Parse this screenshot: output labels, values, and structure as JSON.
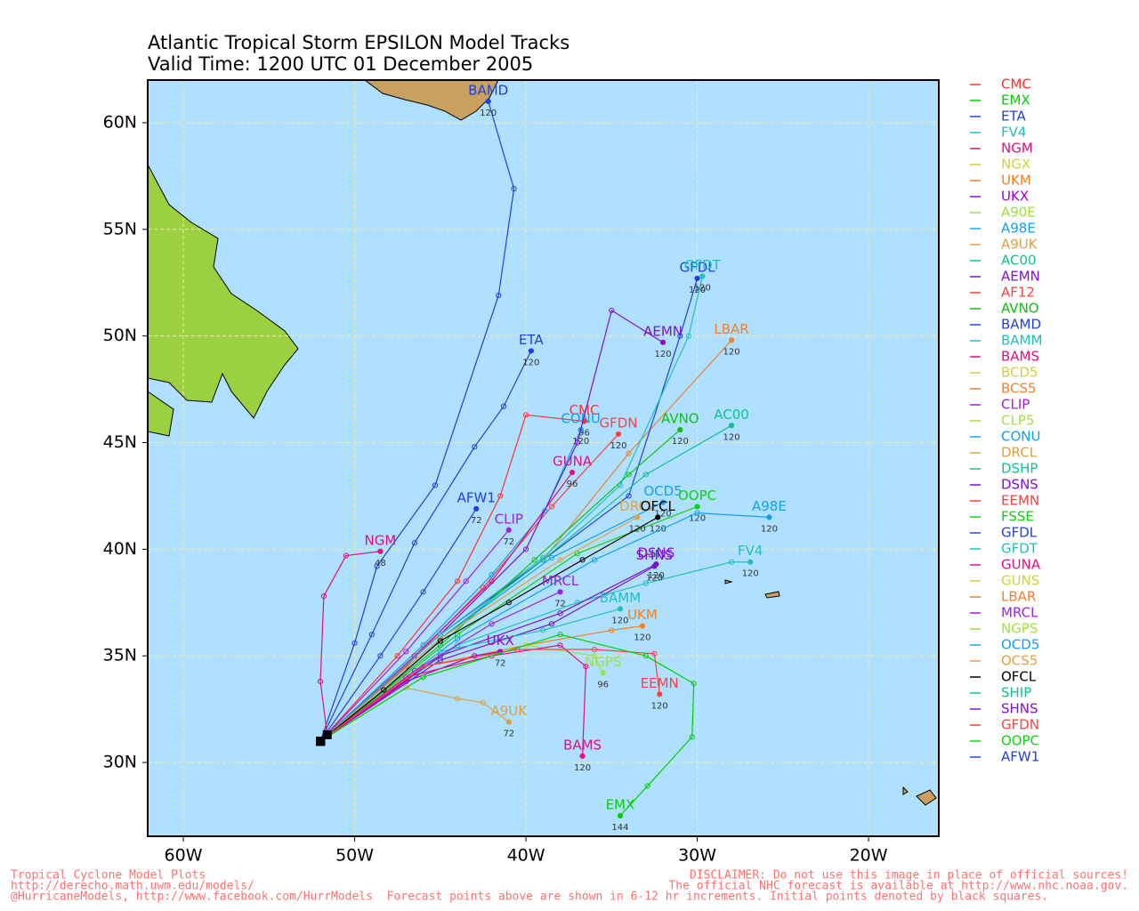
{
  "chart_data": {
    "type": "track-map",
    "title": "Atlantic Tropical Storm EPSILON Model Tracks",
    "subtitle": "Valid Time: 1200 UTC 01 December 2005",
    "xlim": [
      -62.08,
      -15.9
    ],
    "ylim": [
      26.54,
      62
    ],
    "xticks": [
      {
        "value": -60,
        "label": "60W"
      },
      {
        "value": -50,
        "label": "50W"
      },
      {
        "value": -40,
        "label": "40W"
      },
      {
        "value": -30,
        "label": "30W"
      },
      {
        "value": -20,
        "label": "20W"
      }
    ],
    "yticks": [
      {
        "value": 30,
        "label": "30N"
      },
      {
        "value": 35,
        "label": "35N"
      },
      {
        "value": 40,
        "label": "40N"
      },
      {
        "value": 45,
        "label": "45N"
      },
      {
        "value": 50,
        "label": "50N"
      },
      {
        "value": 55,
        "label": "55N"
      },
      {
        "value": 60,
        "label": "60N"
      }
    ],
    "grid": true,
    "ocean_color": "#b0e0ff",
    "legend": [
      {
        "name": "CMC",
        "color": "#ff3030"
      },
      {
        "name": "EMX",
        "color": "#00d000"
      },
      {
        "name": "ETA",
        "color": "#2040e0"
      },
      {
        "name": "FV4",
        "color": "#20c0c0"
      },
      {
        "name": "NGM",
        "color": "#e0107a"
      },
      {
        "name": "NGX",
        "color": "#d0d040"
      },
      {
        "name": "UKM",
        "color": "#f08020"
      },
      {
        "name": "UKX",
        "color": "#a000d0"
      },
      {
        "name": "A90E",
        "color": "#a0e040"
      },
      {
        "name": "A98E",
        "color": "#10a0f0"
      },
      {
        "name": "A9UK",
        "color": "#e0a040"
      },
      {
        "name": "AC00",
        "color": "#10c090"
      },
      {
        "name": "AEMN",
        "color": "#8010d0"
      },
      {
        "name": "AF12",
        "color": "#ff4040"
      },
      {
        "name": "AVNO",
        "color": "#10c010"
      },
      {
        "name": "BAMD",
        "color": "#2040e0"
      },
      {
        "name": "BAMM",
        "color": "#20c0c0"
      },
      {
        "name": "BAMS",
        "color": "#e01080"
      },
      {
        "name": "BCD5",
        "color": "#d0d040"
      },
      {
        "name": "BCS5",
        "color": "#f08030"
      },
      {
        "name": "CLIP",
        "color": "#a020e0"
      },
      {
        "name": "CLP5",
        "color": "#a0e040"
      },
      {
        "name": "CONU",
        "color": "#10a0f0"
      },
      {
        "name": "DRCL",
        "color": "#e0a040"
      },
      {
        "name": "DSHP",
        "color": "#10c090"
      },
      {
        "name": "DSNS",
        "color": "#8010d0"
      },
      {
        "name": "EEMN",
        "color": "#ff4040"
      },
      {
        "name": "FSSE",
        "color": "#10d010"
      },
      {
        "name": "GFDL",
        "color": "#2040e0"
      },
      {
        "name": "GFDT",
        "color": "#20c0c0"
      },
      {
        "name": "GUNA",
        "color": "#e01080"
      },
      {
        "name": "GUNS",
        "color": "#d0d040"
      },
      {
        "name": "LBAR",
        "color": "#f08030"
      },
      {
        "name": "MRCL",
        "color": "#a020e0"
      },
      {
        "name": "NGPS",
        "color": "#a0e040"
      },
      {
        "name": "OCD5",
        "color": "#10a0f0"
      },
      {
        "name": "OCS5",
        "color": "#e0a040"
      },
      {
        "name": "OFCL",
        "color": "#000000"
      },
      {
        "name": "SHIP",
        "color": "#10c090"
      },
      {
        "name": "SHNS",
        "color": "#8010d0"
      },
      {
        "name": "GFDN",
        "color": "#ff4040"
      },
      {
        "name": "OOPC",
        "color": "#10d010"
      },
      {
        "name": "AFW1",
        "color": "#2040e0"
      }
    ],
    "tracks": [
      {
        "name": "BAMD",
        "color": "#2040e0",
        "lon": [
          -52,
          -50,
          -48.7,
          -45.3,
          -41.6,
          -40.7,
          -42.2
        ],
        "lat": [
          31,
          35.6,
          39.2,
          43,
          51.9,
          56.9,
          61
        ],
        "end_hour": 120
      },
      {
        "name": "ETA",
        "color": "#2040e0",
        "lon": [
          -52,
          -49,
          -46.5,
          -43,
          -41.3,
          -39.7
        ],
        "lat": [
          31,
          36,
          40.3,
          44.8,
          46.7,
          49.3
        ],
        "end_hour": 120
      },
      {
        "name": "NGM",
        "color": "#e0107a",
        "lon": [
          -51.6,
          -52,
          -51.8,
          -50.5,
          -48.5
        ],
        "lat": [
          31.3,
          33.8,
          37.8,
          39.7,
          39.9
        ],
        "end_hour": 48
      },
      {
        "name": "AFW1",
        "color": "#2040e0",
        "lon": [
          -52,
          -48.5,
          -46,
          -42.9
        ],
        "lat": [
          31,
          35,
          38,
          41.9
        ],
        "end_hour": 72
      },
      {
        "name": "CMC",
        "color": "#ff3030",
        "lon": [
          -52,
          -47.5,
          -44,
          -41.5,
          -40,
          -36.6
        ],
        "lat": [
          31,
          35,
          38.5,
          42.5,
          46.3,
          46
        ],
        "end_hour": 96
      },
      {
        "name": "GFDN",
        "color": "#ff4040",
        "lon": [
          -52,
          -47,
          -42.5,
          -38.5,
          -34.6
        ],
        "lat": [
          31,
          34.5,
          38.2,
          42,
          45.4
        ],
        "end_hour": 120
      },
      {
        "name": "CLIP",
        "color": "#a020e0",
        "lon": [
          -52,
          -47,
          -43.5,
          -41
        ],
        "lat": [
          31,
          35.2,
          38.5,
          40.9
        ],
        "end_hour": 72
      },
      {
        "name": "CONU",
        "color": "#10a0f0",
        "lon": [
          -52,
          -46,
          -42,
          -38.9,
          -36.8
        ],
        "lat": [
          31,
          35.5,
          38.8,
          41.8,
          45.6
        ],
        "end_hour": 120
      },
      {
        "name": "GUNA",
        "color": "#e01080",
        "lon": [
          -52,
          -46.5,
          -42,
          -37.3
        ],
        "lat": [
          31,
          35,
          38.5,
          43.6
        ],
        "end_hour": 96
      },
      {
        "name": "AEMN",
        "color": "#8010d0",
        "lon": [
          -52,
          -45,
          -40,
          -37,
          -35,
          -32
        ],
        "lat": [
          31,
          36,
          40,
          45,
          51.2,
          49.7
        ],
        "end_hour": 120
      },
      {
        "name": "LBAR",
        "color": "#f08030",
        "lon": [
          -52,
          -45,
          -39,
          -34,
          -28
        ],
        "lat": [
          31,
          35.8,
          39.5,
          44.5,
          49.8
        ],
        "end_hour": 120
      },
      {
        "name": "GFDL",
        "color": "#2040e0",
        "lon": [
          -52,
          -45,
          -39,
          -34,
          -31,
          -30
        ],
        "lat": [
          31,
          36,
          39.5,
          42.5,
          50,
          52.7
        ],
        "end_hour": 120
      },
      {
        "name": "GFDT",
        "color": "#20c0c0",
        "lon": [
          -52,
          -45,
          -39,
          -34.5,
          -30.5,
          -29.7
        ],
        "lat": [
          31,
          36,
          39.6,
          43,
          50,
          52.8
        ],
        "end_hour": 120
      },
      {
        "name": "AVNO",
        "color": "#10c010",
        "lon": [
          -52,
          -45,
          -39.5,
          -34,
          -31
        ],
        "lat": [
          31,
          35.5,
          39.5,
          43.5,
          45.6
        ],
        "end_hour": 120
      },
      {
        "name": "AC00",
        "color": "#10c090",
        "lon": [
          -52,
          -45,
          -39,
          -33,
          -28
        ],
        "lat": [
          31,
          35.8,
          39.5,
          43.5,
          45.8
        ],
        "end_hour": 120
      },
      {
        "name": "OCD5",
        "color": "#10a0f0",
        "lon": [
          -52,
          -45,
          -38.5,
          -32
        ],
        "lat": [
          31,
          35.8,
          39.6,
          42.2
        ],
        "end_hour": 120
      },
      {
        "name": "OOPC",
        "color": "#10d010",
        "lon": [
          -52,
          -44,
          -37,
          -30
        ],
        "lat": [
          31,
          36,
          39.8,
          42
        ],
        "end_hour": 120
      },
      {
        "name": "DRCL",
        "color": "#e0a040",
        "lon": [
          -52,
          -45,
          -38,
          -33.5
        ],
        "lat": [
          31,
          35.8,
          39.5,
          41.5
        ],
        "end_hour": 120
      },
      {
        "name": "OFCL",
        "color": "#000000",
        "lon": [
          -52,
          -48.3,
          -45,
          -41,
          -36.7,
          -32.3
        ],
        "lat": [
          31,
          33.4,
          35.7,
          37.5,
          39.5,
          41.5
        ],
        "end_hour": 120
      },
      {
        "name": "A98E",
        "color": "#10a0f0",
        "lon": [
          -52,
          -44,
          -36,
          -30,
          -25.8
        ],
        "lat": [
          31,
          35.8,
          39.5,
          41.7,
          41.5
        ],
        "end_hour": 120
      },
      {
        "name": "FV4",
        "color": "#20c0c0",
        "lon": [
          -52,
          -44,
          -37,
          -33,
          -28,
          -26.9
        ],
        "lat": [
          31,
          35.5,
          37.5,
          38.4,
          39.4,
          39.4
        ],
        "end_hour": 120
      },
      {
        "name": "DSNS",
        "color": "#8010d0",
        "lon": [
          -52,
          -45,
          -38,
          -32.4
        ],
        "lat": [
          31,
          35,
          37,
          39.3
        ],
        "end_hour": 120
      },
      {
        "name": "SHNS",
        "color": "#8010d0",
        "lon": [
          -52,
          -45,
          -38.5,
          -32.5
        ],
        "lat": [
          31,
          34.8,
          36.5,
          39.2
        ],
        "end_hour": 120
      },
      {
        "name": "BAMM",
        "color": "#20c0c0",
        "lon": [
          -52,
          -45,
          -39,
          -34.5
        ],
        "lat": [
          31,
          35.2,
          36.2,
          37.2
        ],
        "end_hour": 120
      },
      {
        "name": "UKM",
        "color": "#f08020",
        "lon": [
          -52,
          -46,
          -40,
          -35,
          -33.2
        ],
        "lat": [
          31,
          34.5,
          35.5,
          36.2,
          36.4
        ],
        "end_hour": 120
      },
      {
        "name": "MRCL",
        "color": "#a020e0",
        "lon": [
          -52,
          -46.5,
          -42,
          -38
        ],
        "lat": [
          31,
          34.3,
          36.5,
          38
        ],
        "end_hour": 72
      },
      {
        "name": "UKX",
        "color": "#a000d0",
        "lon": [
          -52,
          -47,
          -43,
          -41.5
        ],
        "lat": [
          31,
          33.8,
          35,
          35.2
        ],
        "end_hour": 72
      },
      {
        "name": "NGPS",
        "color": "#a0e040",
        "lon": [
          -52,
          -46,
          -40,
          -36,
          -35.5
        ],
        "lat": [
          31,
          34,
          35.5,
          35,
          34.2
        ],
        "end_hour": 96
      },
      {
        "name": "BAMS",
        "color": "#e01080",
        "lon": [
          -52,
          -47,
          -42,
          -38,
          -36.5,
          -36.7
        ],
        "lat": [
          31,
          34,
          35,
          35.5,
          34.5,
          30.3
        ],
        "end_hour": 120
      },
      {
        "name": "EEMN",
        "color": "#ff4040",
        "lon": [
          -52,
          -46,
          -40.5,
          -36,
          -32.5,
          -32.2
        ],
        "lat": [
          31,
          34.5,
          35.3,
          35.3,
          35.1,
          33.2
        ],
        "end_hour": 120
      },
      {
        "name": "A9UK",
        "color": "#e0a040",
        "lon": [
          -52,
          -47,
          -44,
          -42.5,
          -41
        ],
        "lat": [
          31,
          33.5,
          33,
          32.8,
          31.9
        ],
        "end_hour": 72
      },
      {
        "name": "EMX",
        "color": "#00d000",
        "lon": [
          -52,
          -46,
          -38,
          -33,
          -30.2,
          -30.3,
          -32.9,
          -34.5
        ],
        "lat": [
          31,
          34,
          36,
          35,
          33.7,
          31.2,
          28.9,
          27.5
        ],
        "end_hour": 144
      }
    ],
    "footer_left": [
      "Tropical Cyclone Model Plots",
      "http://derecho.math.uwm.edu/models/"
    ],
    "footer_right": [
      "DISCLAIMER: Do not use this image in place of official sources!",
      "The official NHC forecast is available at http://www.nhc.noaa.gov."
    ],
    "footer_bottom": "@HurricaneModels, http://www.facebook.com/HurrModels  Forecast points above are shown in 6-12 hr increments. Initial points denoted by black squares."
  }
}
